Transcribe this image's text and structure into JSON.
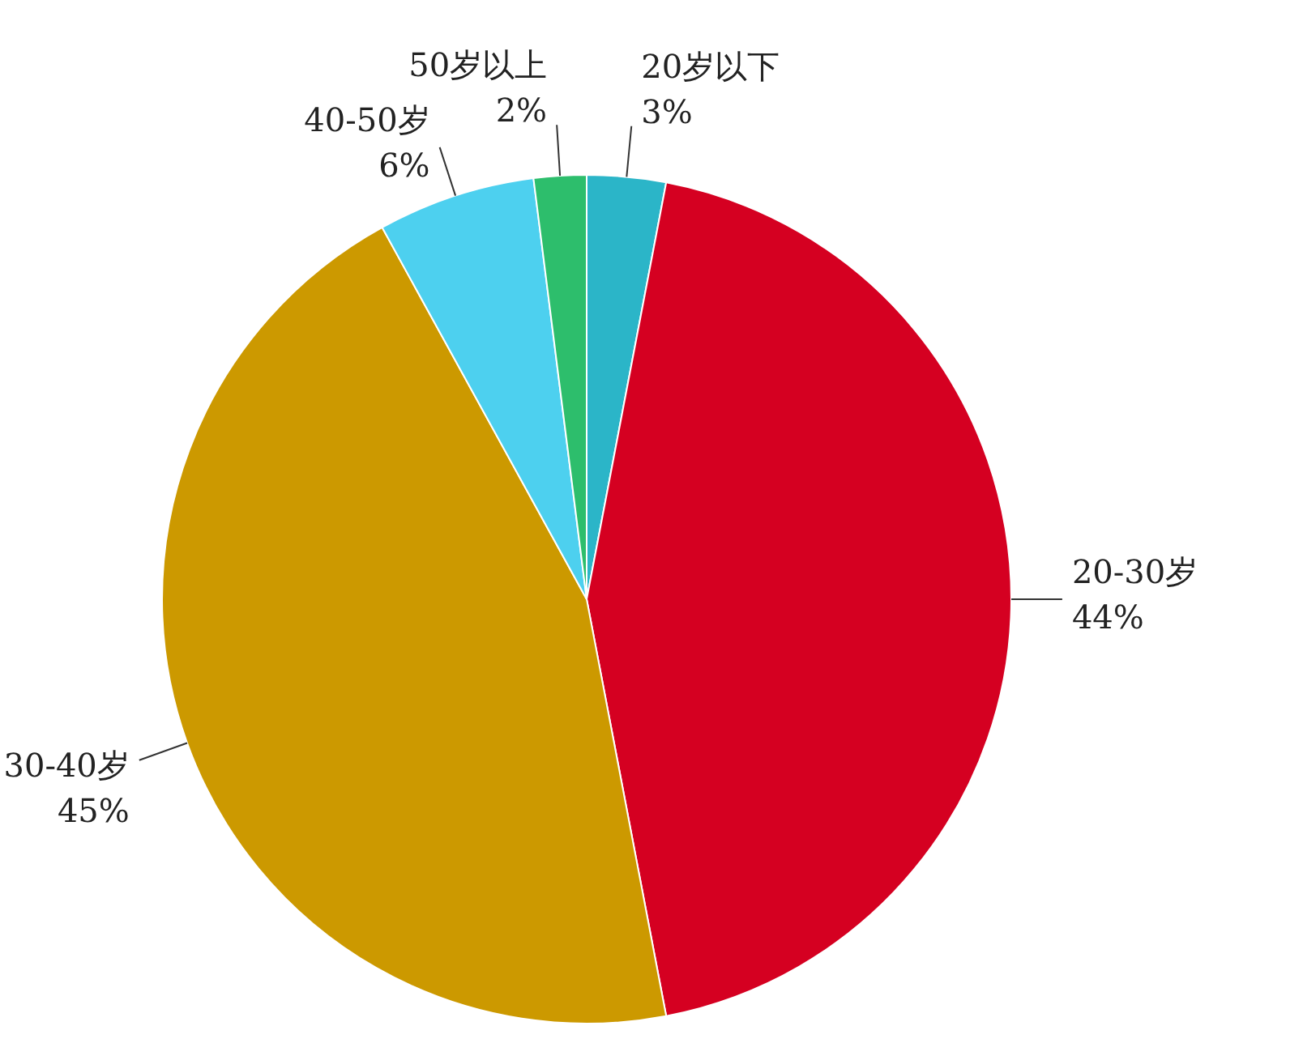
{
  "chart_data": {
    "type": "pie",
    "categories": [
      "20岁以下",
      "20-30岁",
      "30-40岁",
      "40-50岁",
      "50岁以上"
    ],
    "values": [
      3,
      44,
      45,
      6,
      2
    ],
    "colors": [
      "#2bb5c8",
      "#d50021",
      "#cc9900",
      "#4dd0ef",
      "#2dbe6c"
    ],
    "value_labels": [
      "3%",
      "44%",
      "45%",
      "6%",
      "2%"
    ]
  }
}
